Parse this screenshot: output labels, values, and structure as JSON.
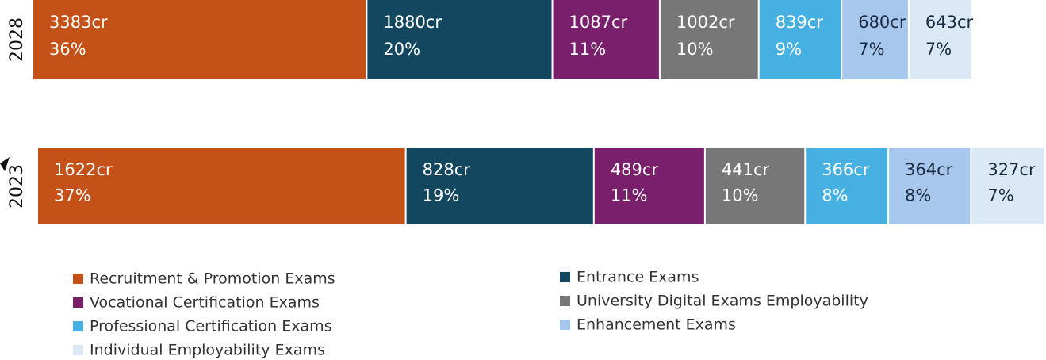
{
  "chart_data": {
    "type": "bar",
    "orientation": "horizontal",
    "stacked": true,
    "categories": [
      "2028",
      "2023"
    ],
    "series": [
      {
        "name": "Recruitment & Promotion Exams",
        "color": "#c45117",
        "values": [
          3383,
          1622
        ],
        "value_labels": [
          "3383cr",
          "1622cr"
        ],
        "percents": [
          36,
          37
        ],
        "percent_labels": [
          "36%",
          "37%"
        ]
      },
      {
        "name": "Entrance Exams",
        "color": "#12475f",
        "values": [
          1880,
          828
        ],
        "value_labels": [
          "1880cr",
          "828cr"
        ],
        "percents": [
          20,
          19
        ],
        "percent_labels": [
          "20%",
          "19%"
        ]
      },
      {
        "name": "Vocational Certification Exams",
        "color": "#7a1f6c",
        "values": [
          1087,
          489
        ],
        "value_labels": [
          "1087cr",
          "489cr"
        ],
        "percents": [
          11,
          11
        ],
        "percent_labels": [
          "11%",
          "11%"
        ]
      },
      {
        "name": "University Digital Exams  Employability",
        "color": "#777777",
        "values": [
          1002,
          441
        ],
        "value_labels": [
          "1002cr",
          "441cr"
        ],
        "percents": [
          10,
          10
        ],
        "percent_labels": [
          "10%",
          "10%"
        ]
      },
      {
        "name": "Professional Certification Exams",
        "color": "#45b0e1",
        "values": [
          839,
          366
        ],
        "value_labels": [
          "839cr",
          "366cr"
        ],
        "percents": [
          9,
          8
        ],
        "percent_labels": [
          "9%",
          "8%"
        ]
      },
      {
        "name": "Enhancement Exams",
        "color": "#a7c8ec",
        "values": [
          680,
          364
        ],
        "value_labels": [
          "680cr",
          "364cr"
        ],
        "percents": [
          7,
          8
        ],
        "percent_labels": [
          "7%",
          "8%"
        ]
      },
      {
        "name": "Individual Employability Exams",
        "color": "#dbe8f5",
        "values": [
          643,
          327
        ],
        "value_labels": [
          "643cr",
          "327cr"
        ],
        "percents": [
          7,
          7
        ],
        "percent_labels": [
          "7%",
          "7%"
        ]
      }
    ]
  }
}
